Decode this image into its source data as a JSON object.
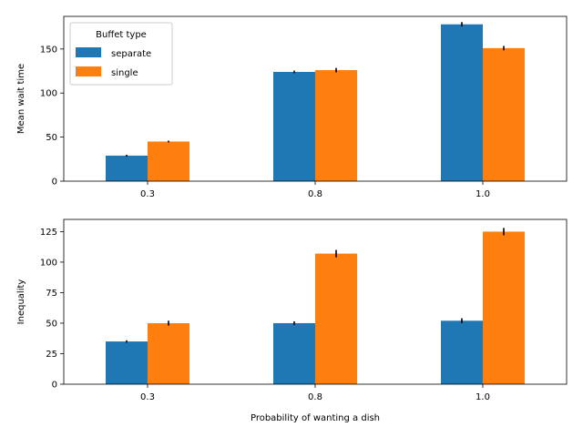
{
  "colors": {
    "separate": "#1f77b4",
    "single": "#ff7f0e",
    "errorbar": "#000000"
  },
  "chart_data": [
    {
      "type": "bar",
      "categories": [
        "0.3",
        "0.8",
        "1.0"
      ],
      "xlabel": "",
      "ylabel": "Mean wait time",
      "ylim": [
        0,
        187
      ],
      "yticks": [
        0,
        50,
        100,
        150
      ],
      "legend": {
        "title": "Buffet type",
        "placement": "upper-left"
      },
      "series": [
        {
          "name": "separate",
          "values": [
            29,
            124,
            178
          ],
          "errors": [
            1,
            1.5,
            2.5
          ]
        },
        {
          "name": "single",
          "values": [
            45,
            126,
            151
          ],
          "errors": [
            1,
            2.5,
            2.5
          ]
        }
      ]
    },
    {
      "type": "bar",
      "categories": [
        "0.3",
        "0.8",
        "1.0"
      ],
      "xlabel": "Probability of wanting a dish",
      "ylabel": "Inequality",
      "ylim": [
        0,
        135
      ],
      "yticks": [
        0,
        25,
        50,
        75,
        100,
        125
      ],
      "series": [
        {
          "name": "separate",
          "values": [
            35,
            50,
            52
          ],
          "errors": [
            1,
            1.5,
            2
          ]
        },
        {
          "name": "single",
          "values": [
            50,
            107,
            125
          ],
          "errors": [
            2,
            3,
            3
          ]
        }
      ]
    }
  ]
}
